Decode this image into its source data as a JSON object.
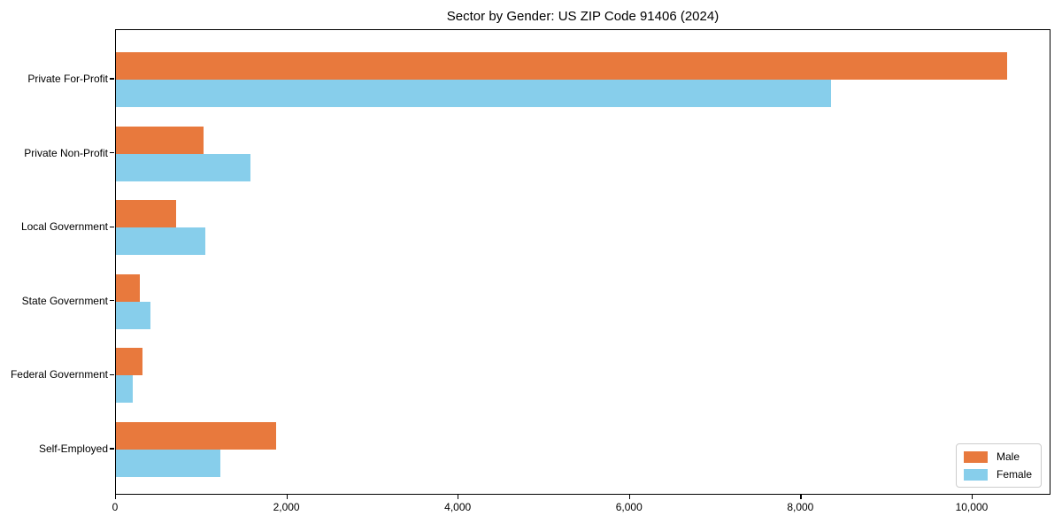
{
  "chart_data": {
    "type": "bar",
    "orientation": "horizontal",
    "title": "Sector by Gender: US ZIP Code 91406 (2024)",
    "categories": [
      "Private For-Profit",
      "Private Non-Profit",
      "Local Government",
      "State Government",
      "Federal Government",
      "Self-Employed"
    ],
    "series": [
      {
        "name": "Male",
        "color": "#E8793D",
        "values": [
          10400,
          1020,
          700,
          280,
          310,
          1870
        ]
      },
      {
        "name": "Female",
        "color": "#87CEEB",
        "values": [
          8350,
          1570,
          1040,
          400,
          200,
          1220
        ]
      }
    ],
    "xlabel": "",
    "ylabel": "",
    "xlim": [
      0,
      10920
    ],
    "x_ticks": [
      0,
      2000,
      4000,
      6000,
      8000,
      10000
    ],
    "x_tick_labels": [
      "0",
      "2,000",
      "4,000",
      "6,000",
      "8,000",
      "10,000"
    ],
    "grid": false,
    "legend": {
      "position": "lower right",
      "entries": [
        "Male",
        "Female"
      ]
    }
  },
  "colors": {
    "background": "#ffffff",
    "axis": "#000000",
    "legend_border": "#cccccc",
    "male": "#E8793D",
    "female": "#87CEEB"
  }
}
